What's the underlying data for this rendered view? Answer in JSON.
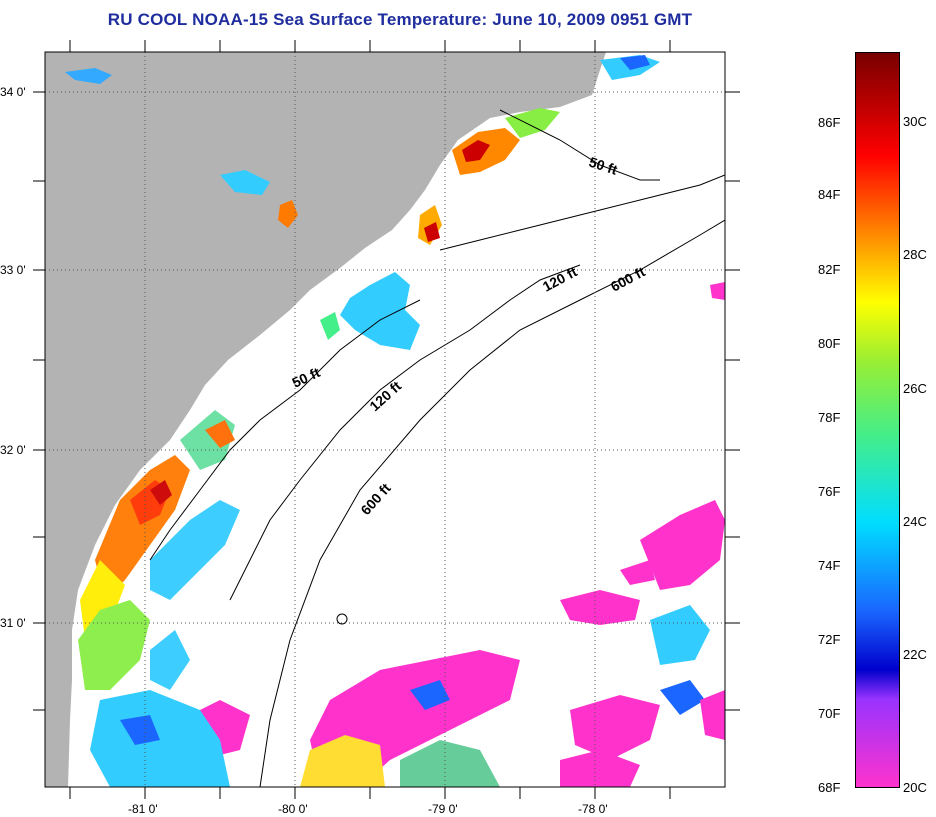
{
  "title": "RU COOL  NOAA-15  Sea Surface Temperature:  June 10, 2009 0951 GMT",
  "map": {
    "lat_labels": [
      "34 0'",
      "33 0'",
      "32 0'",
      "31 0'"
    ],
    "lon_labels": [
      "-81 0'",
      "-80 0'",
      "-79 0'",
      "-78 0'"
    ],
    "contour_labels": [
      "50 ft",
      "120 ft",
      "600 ft",
      "50 ft",
      "120 ft",
      "600 ft"
    ]
  },
  "colorbar": {
    "fahrenheit": [
      "86F",
      "84F",
      "82F",
      "80F",
      "78F",
      "76F",
      "74F",
      "72F",
      "70F",
      "68F"
    ],
    "celsius": [
      "30C",
      "28C",
      "26C",
      "24C",
      "22C",
      "20C"
    ]
  },
  "colors": {
    "title": "#1f2d9e",
    "land": "#b3b3b3",
    "ocean_cloud": "#ffffff"
  }
}
